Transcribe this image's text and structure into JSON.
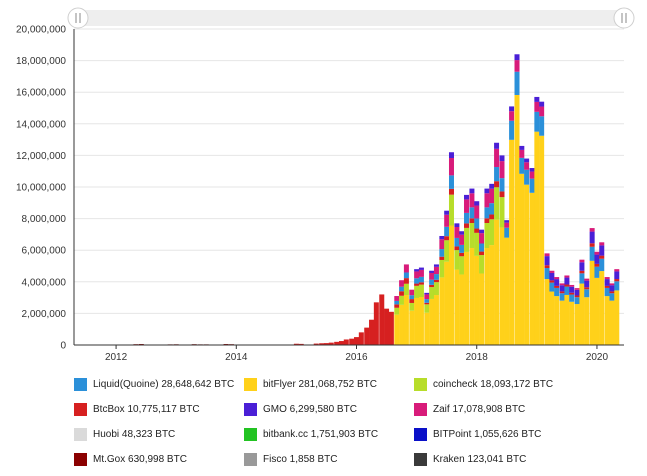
{
  "chart_data": {
    "type": "bar",
    "stacked": true,
    "title": "",
    "xlabel": "",
    "ylabel": "",
    "ylim": [
      0,
      20000000
    ],
    "xlim": [
      2011.3,
      2020.45
    ],
    "yticks": [
      "0",
      "2,000,000",
      "4,000,000",
      "6,000,000",
      "8,000,000",
      "10,000,000",
      "12,000,000",
      "14,000,000",
      "16,000,000",
      "18,000,000",
      "20,000,000"
    ],
    "xticks": [
      "2012",
      "2014",
      "2016",
      "2018",
      "2020"
    ],
    "grid": "horizontal",
    "legend_position": "bottom",
    "scrollbar": true,
    "series": [
      {
        "name": "Liquid(Quoine)",
        "total": "28,648,642 BTC",
        "color": "#2b90d9"
      },
      {
        "name": "bitFlyer",
        "total": "281,068,752 BTC",
        "color": "#ffd11a"
      },
      {
        "name": "coincheck",
        "total": "18,093,172 BTC",
        "color": "#b7dd2a"
      },
      {
        "name": "BtcBox",
        "total": "10,775,117 BTC",
        "color": "#d62020"
      },
      {
        "name": "GMO",
        "total": "6,299,580 BTC",
        "color": "#4a1fd6"
      },
      {
        "name": "Zaif",
        "total": "17,078,908 BTC",
        "color": "#d81b7a"
      },
      {
        "name": "Huobi",
        "total": "48,323 BTC",
        "color": "#dadada"
      },
      {
        "name": "bitbank.cc",
        "total": "1,751,903 BTC",
        "color": "#22c322"
      },
      {
        "name": "BITPoint",
        "total": "1,055,626 BTC",
        "color": "#0a10c8"
      },
      {
        "name": "Mt.Gox",
        "total": "630,998 BTC",
        "color": "#8b0000"
      },
      {
        "name": "Fisco",
        "total": "1,858 BTC",
        "color": "#999999"
      },
      {
        "name": "Kraken",
        "total": "123,041 BTC",
        "color": "#3a3a3a"
      }
    ],
    "bars": [
      {
        "x": 2012.33,
        "total": 50000,
        "top": "Mt.Gox"
      },
      {
        "x": 2012.42,
        "total": 60000,
        "top": "Mt.Gox"
      },
      {
        "x": 2012.9,
        "total": 40000,
        "top": "Mt.Gox"
      },
      {
        "x": 2013.0,
        "total": 45000,
        "top": "Mt.Gox"
      },
      {
        "x": 2013.3,
        "total": 50000,
        "top": "Mt.Gox"
      },
      {
        "x": 2013.4,
        "total": 40000,
        "top": "Mt.Gox"
      },
      {
        "x": 2013.5,
        "total": 40000,
        "top": "Mt.Gox"
      },
      {
        "x": 2013.83,
        "total": 60000,
        "top": "Mt.Gox"
      },
      {
        "x": 2013.92,
        "total": 50000,
        "top": "Mt.Gox"
      },
      {
        "x": 2015.0,
        "total": 80000,
        "top": "BtcBox"
      },
      {
        "x": 2015.08,
        "total": 70000,
        "top": "BtcBox"
      },
      {
        "x": 2015.33,
        "total": 90000,
        "top": "BtcBox"
      },
      {
        "x": 2015.42,
        "total": 110000,
        "top": "BtcBox"
      },
      {
        "x": 2015.5,
        "total": 120000,
        "top": "BtcBox"
      },
      {
        "x": 2015.58,
        "total": 150000,
        "top": "BtcBox"
      },
      {
        "x": 2015.67,
        "total": 200000,
        "top": "BtcBox"
      },
      {
        "x": 2015.75,
        "total": 250000,
        "top": "BtcBox"
      },
      {
        "x": 2015.83,
        "total": 350000,
        "top": "BtcBox"
      },
      {
        "x": 2015.92,
        "total": 400000,
        "top": "BtcBox"
      },
      {
        "x": 2016.0,
        "total": 500000,
        "top": "BtcBox"
      },
      {
        "x": 2016.08,
        "total": 800000,
        "top": "BtcBox"
      },
      {
        "x": 2016.17,
        "total": 1100000,
        "top": "BtcBox"
      },
      {
        "x": 2016.25,
        "total": 1600000,
        "top": "BtcBox"
      },
      {
        "x": 2016.33,
        "total": 2700000,
        "top": "BtcBox"
      },
      {
        "x": 2016.42,
        "total": 3200000,
        "top": "BtcBox"
      },
      {
        "x": 2016.5,
        "total": 2300000,
        "top": "BtcBox"
      },
      {
        "x": 2016.58,
        "total": 2100000,
        "top": "BtcBox"
      },
      {
        "x": 2016.67,
        "total": 3100000,
        "top": "Zaif"
      },
      {
        "x": 2016.75,
        "total": 4100000,
        "top": "Zaif"
      },
      {
        "x": 2016.83,
        "total": 5100000,
        "top": "Zaif"
      },
      {
        "x": 2016.92,
        "total": 3500000,
        "top": "Zaif"
      },
      {
        "x": 2017.0,
        "total": 4800000,
        "top": "Zaif"
      },
      {
        "x": 2017.08,
        "total": 4900000,
        "top": "Zaif"
      },
      {
        "x": 2017.17,
        "total": 3300000,
        "top": "Zaif"
      },
      {
        "x": 2017.25,
        "total": 4700000,
        "top": "Zaif"
      },
      {
        "x": 2017.33,
        "total": 5100000,
        "top": "Zaif"
      },
      {
        "x": 2017.42,
        "total": 6900000,
        "top": "Zaif"
      },
      {
        "x": 2017.5,
        "total": 8500000,
        "top": "Zaif"
      },
      {
        "x": 2017.58,
        "total": 12200000,
        "top": "Zaif"
      },
      {
        "x": 2017.67,
        "total": 7700000,
        "top": "Zaif"
      },
      {
        "x": 2017.75,
        "total": 7200000,
        "top": "Zaif"
      },
      {
        "x": 2017.83,
        "total": 9500000,
        "top": "Zaif"
      },
      {
        "x": 2017.92,
        "total": 9900000,
        "top": "Zaif"
      },
      {
        "x": 2018.0,
        "total": 9100000,
        "top": "Zaif"
      },
      {
        "x": 2018.08,
        "total": 7300000,
        "top": "Zaif"
      },
      {
        "x": 2018.17,
        "total": 9900000,
        "top": "Zaif"
      },
      {
        "x": 2018.25,
        "total": 10200000,
        "top": "Zaif"
      },
      {
        "x": 2018.33,
        "total": 12800000,
        "top": "Zaif"
      },
      {
        "x": 2018.42,
        "total": 12000000,
        "top": "Zaif"
      },
      {
        "x": 2018.5,
        "total": 7900000,
        "top": "Zaif"
      },
      {
        "x": 2018.58,
        "total": 15100000,
        "top": "Zaif"
      },
      {
        "x": 2018.67,
        "total": 18400000,
        "top": "Zaif"
      },
      {
        "x": 2018.75,
        "total": 12600000,
        "top": "Zaif"
      },
      {
        "x": 2018.83,
        "total": 11800000,
        "top": "Zaif"
      },
      {
        "x": 2018.92,
        "total": 11200000,
        "top": "Zaif"
      },
      {
        "x": 2019.0,
        "total": 15700000,
        "top": "Zaif"
      },
      {
        "x": 2019.08,
        "total": 15400000,
        "top": "Zaif"
      },
      {
        "x": 2019.17,
        "total": 5800000,
        "top": "GMO"
      },
      {
        "x": 2019.25,
        "total": 4700000,
        "top": "GMO"
      },
      {
        "x": 2019.33,
        "total": 4300000,
        "top": "GMO"
      },
      {
        "x": 2019.42,
        "total": 3900000,
        "top": "GMO"
      },
      {
        "x": 2019.5,
        "total": 4400000,
        "top": "GMO"
      },
      {
        "x": 2019.58,
        "total": 3800000,
        "top": "GMO"
      },
      {
        "x": 2019.67,
        "total": 3600000,
        "top": "GMO"
      },
      {
        "x": 2019.75,
        "total": 5400000,
        "top": "GMO"
      },
      {
        "x": 2019.83,
        "total": 4200000,
        "top": "GMO"
      },
      {
        "x": 2019.92,
        "total": 7400000,
        "top": "GMO"
      },
      {
        "x": 2020.0,
        "total": 5900000,
        "top": "GMO"
      },
      {
        "x": 2020.08,
        "total": 6500000,
        "top": "GMO"
      },
      {
        "x": 2020.17,
        "total": 4300000,
        "top": "GMO"
      },
      {
        "x": 2020.25,
        "total": 3900000,
        "top": "GMO"
      },
      {
        "x": 2020.33,
        "total": 4800000,
        "top": "GMO"
      }
    ]
  }
}
